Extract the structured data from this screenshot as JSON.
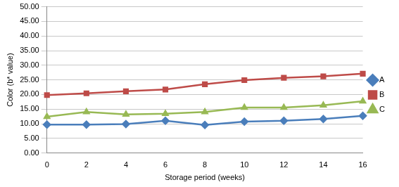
{
  "chart_data": {
    "type": "line",
    "x_label": "Storage period (weeks)",
    "y_label": "Color (b* value)",
    "categories": [
      "0",
      "2",
      "4",
      "6",
      "8",
      "10",
      "12",
      "14",
      "16"
    ],
    "series": [
      {
        "name": "A",
        "color": "#4a7ebb",
        "marker": "diamond",
        "values": [
          9.7,
          9.7,
          9.9,
          11.0,
          9.6,
          10.7,
          11.0,
          11.6,
          12.7
        ]
      },
      {
        "name": "B",
        "color": "#be4b48",
        "marker": "square",
        "values": [
          19.8,
          20.4,
          21.1,
          21.7,
          23.5,
          24.9,
          25.7,
          26.2,
          27.1
        ]
      },
      {
        "name": "C",
        "color": "#98b954",
        "marker": "triangle",
        "values": [
          12.4,
          14.0,
          13.2,
          13.4,
          14.0,
          15.5,
          15.5,
          16.3,
          17.7
        ]
      }
    ],
    "ylim": [
      0,
      50
    ],
    "yticks": [
      {
        "value": 0,
        "label": "0.00"
      },
      {
        "value": 5,
        "label": "5.00"
      },
      {
        "value": 10,
        "label": "10.00"
      },
      {
        "value": 15,
        "label": "15.00"
      },
      {
        "value": 20,
        "label": "20.00"
      },
      {
        "value": 25,
        "label": "25.00"
      },
      {
        "value": 30,
        "label": "30.00"
      },
      {
        "value": 35,
        "label": "35.00"
      },
      {
        "value": 40,
        "label": "40.00"
      },
      {
        "value": 45,
        "label": "45.00"
      },
      {
        "value": 50,
        "label": "50.00"
      }
    ],
    "grid": true,
    "legend": "right"
  }
}
